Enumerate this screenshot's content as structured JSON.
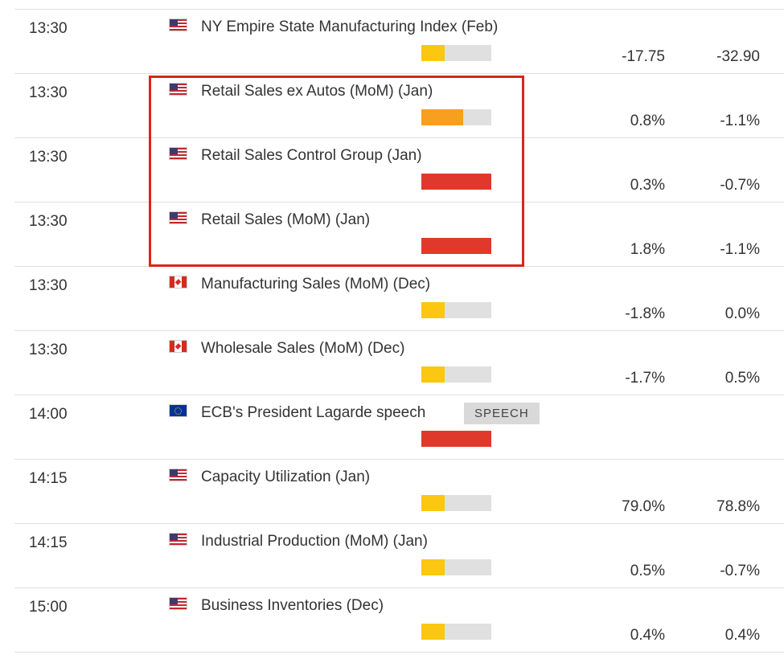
{
  "colors": {
    "low": "#fbc710",
    "medium": "#f79f1f",
    "high": "#e0392b",
    "track": "#e0e0e0",
    "highlight": "#d9251c"
  },
  "events": [
    {
      "time": "13:30",
      "flag": "us",
      "flag_icon": "us-flag-icon",
      "name": "NY Empire State Manufacturing Index (Feb)",
      "tag": "",
      "impact": "low",
      "impact_level": 0.33,
      "actual": "-17.75",
      "previous": "-32.90"
    },
    {
      "time": "13:30",
      "flag": "us",
      "flag_icon": "us-flag-icon",
      "name": "Retail Sales ex Autos (MoM) (Jan)",
      "tag": "",
      "impact": "medium",
      "impact_level": 0.6,
      "actual": "0.8%",
      "previous": "-1.1%"
    },
    {
      "time": "13:30",
      "flag": "us",
      "flag_icon": "us-flag-icon",
      "name": "Retail Sales Control Group (Jan)",
      "tag": "",
      "impact": "high",
      "impact_level": 1.0,
      "actual": "0.3%",
      "previous": "-0.7%"
    },
    {
      "time": "13:30",
      "flag": "us",
      "flag_icon": "us-flag-icon",
      "name": "Retail Sales (MoM) (Jan)",
      "tag": "",
      "impact": "high",
      "impact_level": 1.0,
      "actual": "1.8%",
      "previous": "-1.1%"
    },
    {
      "time": "13:30",
      "flag": "ca",
      "flag_icon": "ca-flag-icon",
      "name": "Manufacturing Sales (MoM) (Dec)",
      "tag": "",
      "impact": "low",
      "impact_level": 0.33,
      "actual": "-1.8%",
      "previous": "0.0%"
    },
    {
      "time": "13:30",
      "flag": "ca",
      "flag_icon": "ca-flag-icon",
      "name": "Wholesale Sales (MoM) (Dec)",
      "tag": "",
      "impact": "low",
      "impact_level": 0.33,
      "actual": "-1.7%",
      "previous": "0.5%"
    },
    {
      "time": "14:00",
      "flag": "eu",
      "flag_icon": "eu-flag-icon",
      "name": "ECB's President Lagarde speech",
      "tag": "SPEECH",
      "impact": "high",
      "impact_level": 1.0,
      "actual": "",
      "previous": ""
    },
    {
      "time": "14:15",
      "flag": "us",
      "flag_icon": "us-flag-icon",
      "name": "Capacity Utilization (Jan)",
      "tag": "",
      "impact": "low",
      "impact_level": 0.33,
      "actual": "79.0%",
      "previous": "78.8%"
    },
    {
      "time": "14:15",
      "flag": "us",
      "flag_icon": "us-flag-icon",
      "name": "Industrial Production (MoM) (Jan)",
      "tag": "",
      "impact": "low",
      "impact_level": 0.33,
      "actual": "0.5%",
      "previous": "-0.7%"
    },
    {
      "time": "15:00",
      "flag": "us",
      "flag_icon": "us-flag-icon",
      "name": "Business Inventories (Dec)",
      "tag": "",
      "impact": "low",
      "impact_level": 0.33,
      "actual": "0.4%",
      "previous": "0.4%"
    }
  ]
}
